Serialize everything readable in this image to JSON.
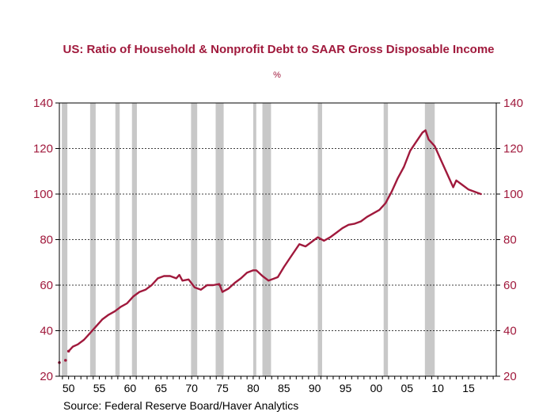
{
  "chart_data": {
    "type": "line",
    "title": "US: Ratio of Household & Nonprofit Debt to SAAR Gross Disposable Income",
    "unit": "%",
    "source": "Source:  Federal Reserve Board/Haver Analytics",
    "xlim": [
      1948.5,
      2019.5
    ],
    "ylim": [
      20,
      140
    ],
    "y_ticks": [
      20,
      40,
      60,
      80,
      100,
      120,
      140
    ],
    "y_tick_labels": [
      "20",
      "40",
      "60",
      "80",
      "100",
      "120",
      "140"
    ],
    "x_ticks": [
      1950,
      1955,
      1960,
      1965,
      1970,
      1975,
      1980,
      1985,
      1990,
      1995,
      2000,
      2005,
      2010,
      2015
    ],
    "x_tick_labels": [
      "50",
      "55",
      "60",
      "65",
      "70",
      "75",
      "80",
      "85",
      "90",
      "95",
      "00",
      "05",
      "10",
      "15"
    ],
    "grid": "horizontal dashed",
    "line_color": "#a0193c",
    "recession_color": "#c8c8c8",
    "recessions": [
      [
        1948.9,
        1949.8
      ],
      [
        1953.5,
        1954.4
      ],
      [
        1957.6,
        1958.3
      ],
      [
        1960.3,
        1961.1
      ],
      [
        1969.9,
        1970.9
      ],
      [
        1973.9,
        1975.2
      ],
      [
        1980.0,
        1980.5
      ],
      [
        1981.5,
        1982.9
      ],
      [
        1990.5,
        1991.2
      ],
      [
        2001.2,
        2001.9
      ],
      [
        2007.9,
        2009.5
      ]
    ],
    "series": [
      {
        "values": [
          [
            1948.5,
            26
          ],
          [
            1949.5,
            27
          ],
          [
            1950.0,
            31
          ],
          [
            1950.7,
            33
          ],
          [
            1951.5,
            34
          ],
          [
            1952.5,
            36
          ],
          [
            1953.5,
            39
          ],
          [
            1954.5,
            42
          ],
          [
            1955.5,
            45
          ],
          [
            1956.5,
            47
          ],
          [
            1957.5,
            48.5
          ],
          [
            1958.5,
            50.5
          ],
          [
            1959.5,
            52
          ],
          [
            1960.5,
            55
          ],
          [
            1961.5,
            57
          ],
          [
            1962.5,
            58
          ],
          [
            1963.5,
            60
          ],
          [
            1964.5,
            63
          ],
          [
            1965.5,
            64
          ],
          [
            1966.5,
            64
          ],
          [
            1967.5,
            63
          ],
          [
            1968.0,
            64.5
          ],
          [
            1968.5,
            62
          ],
          [
            1969.5,
            62.5
          ],
          [
            1970.5,
            59
          ],
          [
            1971.5,
            58
          ],
          [
            1972.5,
            60
          ],
          [
            1973.5,
            60
          ],
          [
            1974.5,
            60.5
          ],
          [
            1975.0,
            57
          ],
          [
            1976.0,
            58.5
          ],
          [
            1977.0,
            61
          ],
          [
            1978.0,
            63
          ],
          [
            1979.0,
            65.5
          ],
          [
            1980.0,
            66.5
          ],
          [
            1980.5,
            66.5
          ],
          [
            1981.5,
            64
          ],
          [
            1982.5,
            62
          ],
          [
            1983.5,
            63
          ],
          [
            1984.0,
            63.5
          ],
          [
            1985.0,
            68
          ],
          [
            1986.0,
            72
          ],
          [
            1987.0,
            76
          ],
          [
            1987.5,
            78
          ],
          [
            1988.5,
            77
          ],
          [
            1989.5,
            79
          ],
          [
            1990.5,
            81
          ],
          [
            1991.5,
            79.5
          ],
          [
            1992.5,
            81
          ],
          [
            1993.5,
            83
          ],
          [
            1994.5,
            85
          ],
          [
            1995.5,
            86.5
          ],
          [
            1996.5,
            87
          ],
          [
            1997.5,
            88
          ],
          [
            1998.5,
            90
          ],
          [
            1999.5,
            91.5
          ],
          [
            2000.5,
            93
          ],
          [
            2001.5,
            96
          ],
          [
            2002.5,
            101
          ],
          [
            2003.5,
            107
          ],
          [
            2004.5,
            112
          ],
          [
            2005.5,
            119
          ],
          [
            2006.5,
            123
          ],
          [
            2007.5,
            127
          ],
          [
            2008.0,
            128
          ],
          [
            2008.5,
            124
          ],
          [
            2009.5,
            121
          ],
          [
            2010.5,
            115
          ],
          [
            2011.5,
            109
          ],
          [
            2012.5,
            103
          ],
          [
            2013.0,
            106
          ],
          [
            2014.0,
            104
          ],
          [
            2015.0,
            102
          ],
          [
            2016.0,
            101
          ],
          [
            2017.0,
            100
          ]
        ]
      }
    ]
  }
}
